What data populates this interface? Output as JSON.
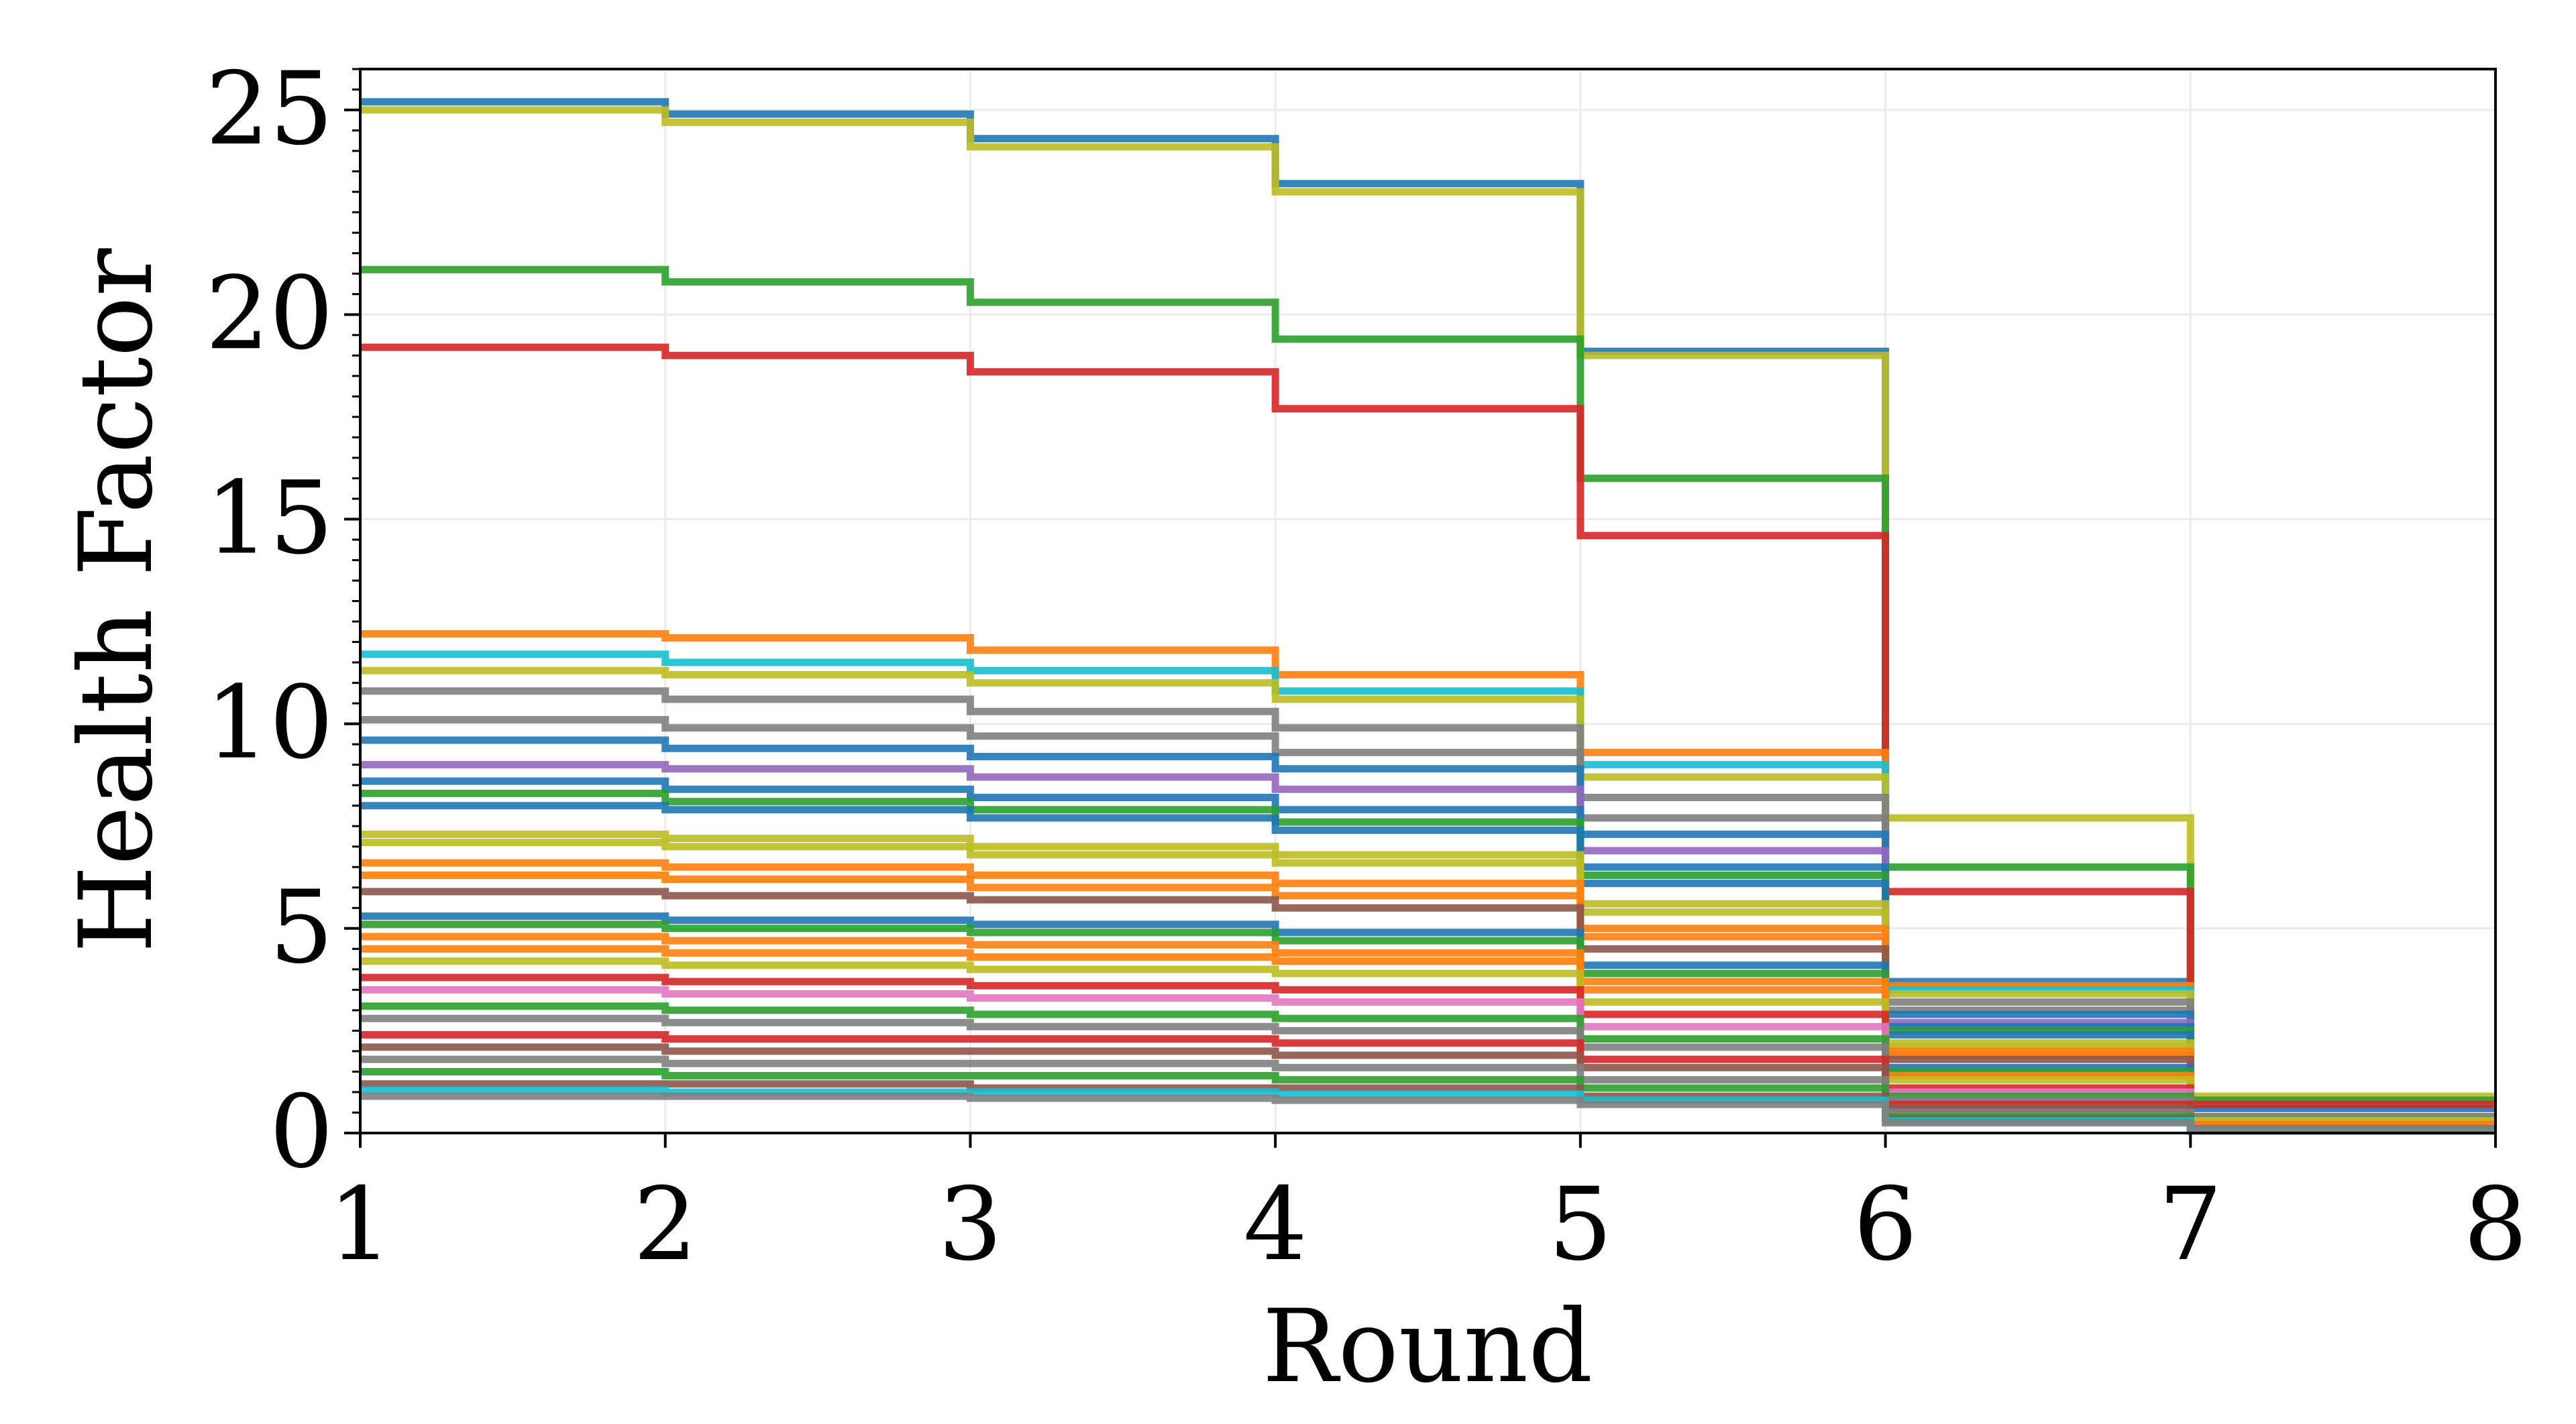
{
  "chart_data": {
    "type": "line",
    "step": "post",
    "xlabel": "Round",
    "ylabel": "Health Factor",
    "xlim": [
      1,
      8
    ],
    "ylim": [
      0,
      26
    ],
    "x_ticks": [
      1,
      2,
      3,
      4,
      5,
      6,
      7,
      8
    ],
    "y_ticks": [
      0,
      5,
      10,
      15,
      20,
      25
    ],
    "grid": true,
    "legend": "none",
    "x": [
      1,
      2,
      3,
      4,
      5,
      6,
      7,
      8
    ],
    "series": [
      {
        "color": "#1f77b4",
        "values": [
          25.2,
          24.9,
          24.3,
          23.2,
          19.1,
          3.7,
          0.6,
          0.6
        ]
      },
      {
        "color": "#bcbd22",
        "values": [
          25.0,
          24.7,
          24.1,
          23.0,
          19.0,
          7.7,
          0.9,
          0.9
        ]
      },
      {
        "color": "#2ca02c",
        "values": [
          21.1,
          20.8,
          20.3,
          19.4,
          16.0,
          6.5,
          0.8,
          0.8
        ]
      },
      {
        "color": "#d62728",
        "values": [
          19.2,
          19.0,
          18.6,
          17.7,
          14.6,
          5.9,
          0.7,
          0.7
        ]
      },
      {
        "color": "#ff7f0e",
        "values": [
          12.2,
          12.1,
          11.8,
          11.2,
          9.3,
          3.6,
          0.4,
          0.4
        ]
      },
      {
        "color": "#17becf",
        "values": [
          11.7,
          11.5,
          11.3,
          10.8,
          9.0,
          3.5,
          0.4,
          0.4
        ]
      },
      {
        "color": "#bcbd22",
        "values": [
          11.3,
          11.2,
          11.0,
          10.6,
          8.7,
          3.4,
          0.4,
          0.4
        ]
      },
      {
        "color": "#7f7f7f",
        "values": [
          10.8,
          10.6,
          10.3,
          9.9,
          8.2,
          3.2,
          0.4,
          0.4
        ]
      },
      {
        "color": "#7f7f7f",
        "values": [
          10.1,
          9.9,
          9.7,
          9.3,
          7.7,
          3.0,
          0.3,
          0.3
        ]
      },
      {
        "color": "#1f77b4",
        "values": [
          9.6,
          9.4,
          9.2,
          8.9,
          7.3,
          2.9,
          0.3,
          0.3
        ]
      },
      {
        "color": "#9467bd",
        "values": [
          9.0,
          8.9,
          8.7,
          8.4,
          6.9,
          2.7,
          0.3,
          0.3
        ]
      },
      {
        "color": "#1f77b4",
        "values": [
          8.6,
          8.4,
          8.2,
          7.9,
          6.5,
          2.6,
          0.3,
          0.3
        ]
      },
      {
        "color": "#2ca02c",
        "values": [
          8.3,
          8.1,
          7.9,
          7.6,
          6.3,
          2.5,
          0.3,
          0.3
        ]
      },
      {
        "color": "#1f77b4",
        "values": [
          8.0,
          7.9,
          7.7,
          7.4,
          6.1,
          2.4,
          0.3,
          0.3
        ]
      },
      {
        "color": "#bcbd22",
        "values": [
          7.3,
          7.2,
          7.0,
          6.8,
          5.6,
          2.2,
          0.3,
          0.3
        ]
      },
      {
        "color": "#bcbd22",
        "values": [
          7.1,
          7.0,
          6.8,
          6.6,
          5.4,
          2.1,
          0.3,
          0.3
        ]
      },
      {
        "color": "#ff7f0e",
        "values": [
          6.6,
          6.5,
          6.3,
          6.1,
          5.0,
          2.0,
          0.2,
          0.2
        ]
      },
      {
        "color": "#ff7f0e",
        "values": [
          6.3,
          6.2,
          6.0,
          5.8,
          4.8,
          1.9,
          0.2,
          0.2
        ]
      },
      {
        "color": "#8c564b",
        "values": [
          5.9,
          5.8,
          5.7,
          5.5,
          4.5,
          1.8,
          0.2,
          0.2
        ]
      },
      {
        "color": "#1f77b4",
        "values": [
          5.3,
          5.2,
          5.1,
          4.9,
          4.1,
          1.6,
          0.2,
          0.2
        ]
      },
      {
        "color": "#2ca02c",
        "values": [
          5.1,
          5.0,
          4.9,
          4.7,
          3.9,
          1.5,
          0.2,
          0.2
        ]
      },
      {
        "color": "#ff7f0e",
        "values": [
          4.8,
          4.7,
          4.6,
          4.4,
          3.7,
          1.4,
          0.2,
          0.2
        ]
      },
      {
        "color": "#ff7f0e",
        "values": [
          4.5,
          4.4,
          4.3,
          4.2,
          3.5,
          1.4,
          0.2,
          0.2
        ]
      },
      {
        "color": "#bcbd22",
        "values": [
          4.2,
          4.1,
          4.0,
          3.9,
          3.2,
          1.3,
          0.1,
          0.1
        ]
      },
      {
        "color": "#d62728",
        "values": [
          3.8,
          3.7,
          3.6,
          3.5,
          2.9,
          1.1,
          0.1,
          0.1
        ]
      },
      {
        "color": "#e377c2",
        "values": [
          3.5,
          3.4,
          3.3,
          3.2,
          2.6,
          1.0,
          0.1,
          0.1
        ]
      },
      {
        "color": "#2ca02c",
        "values": [
          3.1,
          3.0,
          2.9,
          2.8,
          2.3,
          0.9,
          0.1,
          0.1
        ]
      },
      {
        "color": "#7f7f7f",
        "values": [
          2.8,
          2.7,
          2.6,
          2.5,
          2.1,
          0.8,
          0.1,
          0.1
        ]
      },
      {
        "color": "#d62728",
        "values": [
          2.4,
          2.3,
          2.3,
          2.2,
          1.8,
          0.7,
          0.1,
          0.1
        ]
      },
      {
        "color": "#8c564b",
        "values": [
          2.1,
          2.0,
          2.0,
          1.9,
          1.6,
          0.6,
          0.1,
          0.1
        ]
      },
      {
        "color": "#7f7f7f",
        "values": [
          1.8,
          1.7,
          1.7,
          1.6,
          1.3,
          0.5,
          0.1,
          0.1
        ]
      },
      {
        "color": "#2ca02c",
        "values": [
          1.5,
          1.4,
          1.4,
          1.3,
          1.1,
          0.4,
          0.05,
          0.05
        ]
      },
      {
        "color": "#8c564b",
        "values": [
          1.2,
          1.2,
          1.1,
          1.1,
          0.9,
          0.35,
          0.05,
          0.05
        ]
      },
      {
        "color": "#17becf",
        "values": [
          1.05,
          1.0,
          1.0,
          0.95,
          0.8,
          0.3,
          0.05,
          0.05
        ]
      },
      {
        "color": "#7f7f7f",
        "values": [
          0.9,
          0.9,
          0.85,
          0.8,
          0.7,
          0.25,
          0.05,
          0.05
        ]
      }
    ]
  }
}
